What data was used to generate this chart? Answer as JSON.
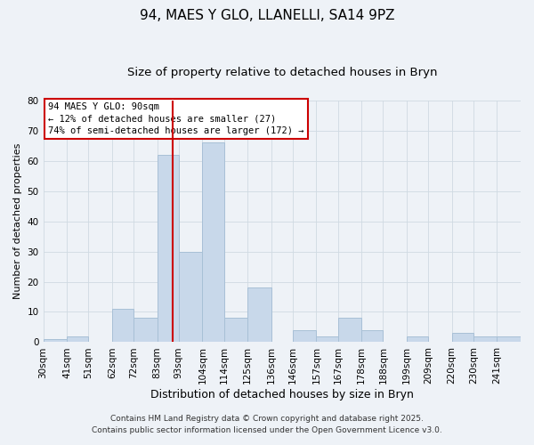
{
  "title": "94, MAES Y GLO, LLANELLI, SA14 9PZ",
  "subtitle": "Size of property relative to detached houses in Bryn",
  "xlabel": "Distribution of detached houses by size in Bryn",
  "ylabel": "Number of detached properties",
  "bar_color": "#c8d8ea",
  "bar_edgecolor": "#a8c0d6",
  "bar_linewidth": 0.7,
  "vline_x": 90,
  "vline_color": "#cc0000",
  "categories": [
    "30sqm",
    "41sqm",
    "51sqm",
    "62sqm",
    "72sqm",
    "83sqm",
    "93sqm",
    "104sqm",
    "114sqm",
    "125sqm",
    "136sqm",
    "146sqm",
    "157sqm",
    "167sqm",
    "178sqm",
    "188sqm",
    "199sqm",
    "209sqm",
    "220sqm",
    "230sqm",
    "241sqm"
  ],
  "bin_edges": [
    30,
    41,
    51,
    62,
    72,
    83,
    93,
    104,
    114,
    125,
    136,
    146,
    157,
    167,
    178,
    188,
    199,
    209,
    220,
    230,
    241,
    252
  ],
  "values": [
    1,
    2,
    0,
    11,
    8,
    62,
    30,
    66,
    8,
    18,
    0,
    4,
    2,
    8,
    4,
    0,
    2,
    0,
    3,
    2,
    2
  ],
  "ylim": [
    0,
    80
  ],
  "yticks": [
    0,
    10,
    20,
    30,
    40,
    50,
    60,
    70,
    80
  ],
  "legend_box_text": "94 MAES Y GLO: 90sqm\n← 12% of detached houses are smaller (27)\n74% of semi-detached houses are larger (172) →",
  "legend_box_edgecolor": "#cc0000",
  "legend_box_facecolor": "#ffffff",
  "grid_color": "#d0dae2",
  "bg_color": "#eef2f7",
  "footnote1": "Contains HM Land Registry data © Crown copyright and database right 2025.",
  "footnote2": "Contains public sector information licensed under the Open Government Licence v3.0.",
  "title_fontsize": 11,
  "subtitle_fontsize": 9.5,
  "xlabel_fontsize": 9,
  "ylabel_fontsize": 8,
  "tick_fontsize": 7.5,
  "legend_fontsize": 7.5,
  "footnote_fontsize": 6.5
}
